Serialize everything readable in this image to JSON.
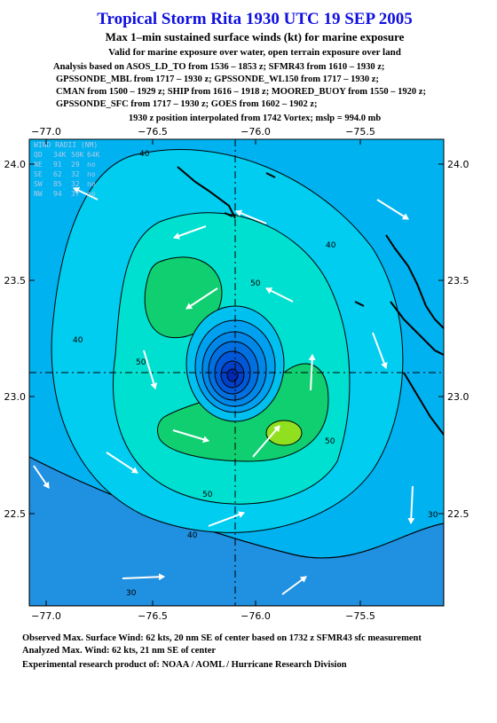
{
  "header": {
    "title": "Tropical Storm Rita 1930 UTC 19 SEP 2005",
    "subtitle": "Max 1–min sustained surface winds (kt) for marine exposure",
    "note": "Valid for marine exposure over water, open terrain exposure over land",
    "analysis": [
      "Analysis based on  ASOS_LD_TO from 1536 – 1853 z;  SFMR43 from 1610 – 1930 z;",
      "GPSSONDE_MBL from 1717 – 1930 z;  GPSSONDE_WL150 from 1717 – 1930 z;",
      "CMAN from 1500 – 1929 z;  SHIP from 1616 – 1918 z;  MOORED_BUOY from 1550 – 1920 z;",
      "GPSSONDE_SFC from 1717 – 1930 z;  GOES from 1602 – 1902 z;"
    ],
    "position": "1930 z position interpolated from 1742 Vortex; mslp = 994.0 mb"
  },
  "map": {
    "x_ticks": [
      "−77.0",
      "−76.5",
      "−76.0",
      "−75.5"
    ],
    "y_ticks": [
      "24.0",
      "23.5",
      "23.0",
      "22.5"
    ],
    "contour_labels": [
      "40",
      "40",
      "40",
      "50",
      "50",
      "50",
      "50",
      "40",
      "30",
      "30"
    ],
    "wind_radii": {
      "title": "WIND RADII (NM)",
      "header": [
        "QD",
        "34K",
        "50K",
        "64K"
      ],
      "rows": [
        [
          "NE",
          "91",
          "29",
          "no"
        ],
        [
          "SE",
          "62",
          "32",
          "no"
        ],
        [
          "SW",
          "85",
          "32",
          "no"
        ],
        [
          "NW",
          "94",
          "37",
          "no"
        ]
      ]
    }
  },
  "footer": {
    "observed": "Observed Max. Surface Wind: 62 kts, 20 nm SE of center based on 1732 z SFMR43 sfc measurement",
    "analyzed": "Analyzed Max. Wind: 62 kts, 21 nm SE of center",
    "credit": "Experimental research product of:  NOAA / AOML / Hurricane Research Division"
  }
}
